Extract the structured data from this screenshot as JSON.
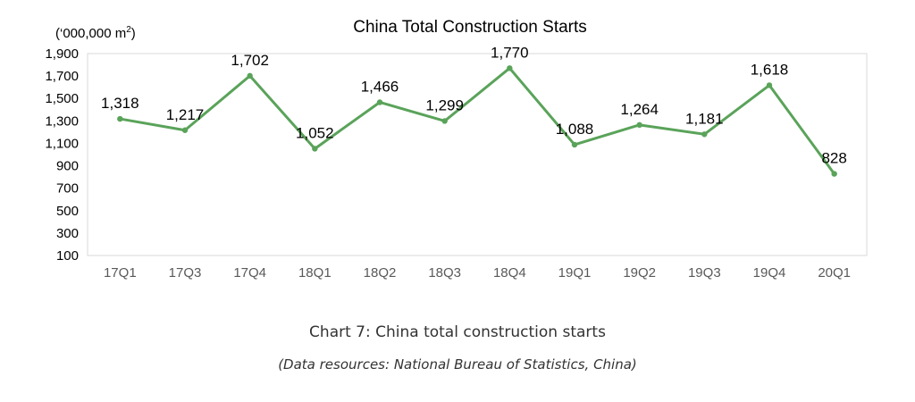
{
  "chart_data": {
    "type": "line",
    "title": "China Total Construction Starts",
    "unit_label": "(‘000,000 m",
    "unit_superscript": "2",
    "unit_close": ")",
    "categories": [
      "17Q1",
      "17Q3",
      "17Q4",
      "18Q1",
      "18Q2",
      "18Q3",
      "18Q4",
      "19Q1",
      "19Q2",
      "19Q3",
      "19Q4",
      "20Q1"
    ],
    "values": [
      1318,
      1217,
      1702,
      1052,
      1466,
      1299,
      1770,
      1088,
      1264,
      1181,
      1618,
      828
    ],
    "data_labels": [
      "1,318",
      "1,217",
      "1,702",
      "1,052",
      "1,466",
      "1,299",
      "1,770",
      "1,088",
      "1,264",
      "1,181",
      "1,618",
      "828"
    ],
    "ylim": [
      100,
      1900
    ],
    "yticks": [
      100,
      300,
      500,
      700,
      900,
      1100,
      1300,
      1500,
      1700,
      1900
    ],
    "ytick_labels": [
      "100",
      "300",
      "500",
      "700",
      "900",
      "1,100",
      "1,300",
      "1,500",
      "1,700",
      "1,900"
    ],
    "line_color": "#5aa35a",
    "grid": false,
    "legend": "none"
  },
  "caption": {
    "main": "Chart 7: China total construction starts",
    "source": "(Data resources: National Bureau of Statistics, China)"
  }
}
